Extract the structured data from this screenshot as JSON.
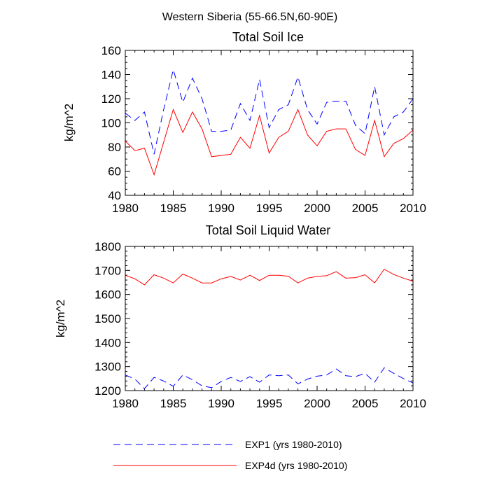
{
  "figure_title": "Western Siberia (55-66.5N,60-90E)",
  "colors": {
    "exp1": "#0000ff",
    "exp4d": "#ff0000",
    "axis": "#000000"
  },
  "legend": {
    "exp1_label": "EXP1 (yrs 1980-2010)",
    "exp4d_label": "EXP4d (yrs 1980-2010)"
  },
  "chart_data": [
    {
      "type": "line",
      "title": "Total Soil Ice",
      "xlabel": "",
      "ylabel": "kg/m^2",
      "xlim": [
        1980,
        2010
      ],
      "ylim": [
        40,
        160
      ],
      "x_ticks": [
        1980,
        1985,
        1990,
        1995,
        2000,
        2005,
        2010
      ],
      "y_ticks": [
        40,
        60,
        80,
        100,
        120,
        140,
        160
      ],
      "x": [
        1980,
        1981,
        1982,
        1983,
        1984,
        1985,
        1986,
        1987,
        1988,
        1989,
        1990,
        1991,
        1992,
        1993,
        1994,
        1995,
        1996,
        1997,
        1998,
        1999,
        2000,
        2001,
        2002,
        2003,
        2004,
        2005,
        2006,
        2007,
        2008,
        2009,
        2010
      ],
      "series": [
        {
          "name": "EXP1 (yrs 1980-2010)",
          "style": "dashed",
          "color": "#0000ff",
          "values": [
            108,
            102,
            109,
            74,
            111,
            144,
            117,
            137,
            120,
            93,
            93,
            94,
            116,
            102,
            136,
            96,
            111,
            115,
            138,
            111,
            99,
            117,
            118,
            118,
            98,
            91,
            130,
            90,
            105,
            109,
            120
          ]
        },
        {
          "name": "EXP4d (yrs 1980-2010)",
          "style": "solid",
          "color": "#ff0000",
          "values": [
            85,
            77,
            79,
            57,
            84,
            111,
            92,
            109,
            95,
            72,
            73,
            74,
            88,
            79,
            106,
            75,
            88,
            93,
            111,
            90,
            81,
            93,
            95,
            95,
            78,
            73,
            102,
            72,
            83,
            87,
            94
          ]
        }
      ]
    },
    {
      "type": "line",
      "title": "Total Soil Liquid Water",
      "xlabel": "",
      "ylabel": "kg/m^2",
      "xlim": [
        1980,
        2010
      ],
      "ylim": [
        1200,
        1800
      ],
      "x_ticks": [
        1980,
        1985,
        1990,
        1995,
        2000,
        2005,
        2010
      ],
      "y_ticks": [
        1200,
        1300,
        1400,
        1500,
        1600,
        1700,
        1800
      ],
      "x": [
        1980,
        1981,
        1982,
        1983,
        1984,
        1985,
        1986,
        1987,
        1988,
        1989,
        1990,
        1991,
        1992,
        1993,
        1994,
        1995,
        1996,
        1997,
        1998,
        1999,
        2000,
        2001,
        2002,
        2003,
        2004,
        2005,
        2006,
        2007,
        2008,
        2009,
        2010
      ],
      "series": [
        {
          "name": "EXP1 (yrs 1980-2010)",
          "style": "dashed",
          "color": "#0000ff",
          "values": [
            1265,
            1248,
            1208,
            1255,
            1240,
            1218,
            1265,
            1245,
            1220,
            1212,
            1238,
            1255,
            1238,
            1258,
            1235,
            1265,
            1262,
            1265,
            1228,
            1248,
            1260,
            1265,
            1290,
            1262,
            1258,
            1272,
            1235,
            1295,
            1272,
            1250,
            1232
          ]
        },
        {
          "name": "EXP4d (yrs 1980-2010)",
          "style": "solid",
          "color": "#ff0000",
          "values": [
            1680,
            1665,
            1640,
            1682,
            1668,
            1648,
            1685,
            1668,
            1648,
            1648,
            1665,
            1675,
            1660,
            1680,
            1658,
            1680,
            1680,
            1676,
            1648,
            1668,
            1675,
            1678,
            1695,
            1668,
            1670,
            1682,
            1648,
            1705,
            1683,
            1668,
            1655
          ]
        }
      ]
    }
  ]
}
